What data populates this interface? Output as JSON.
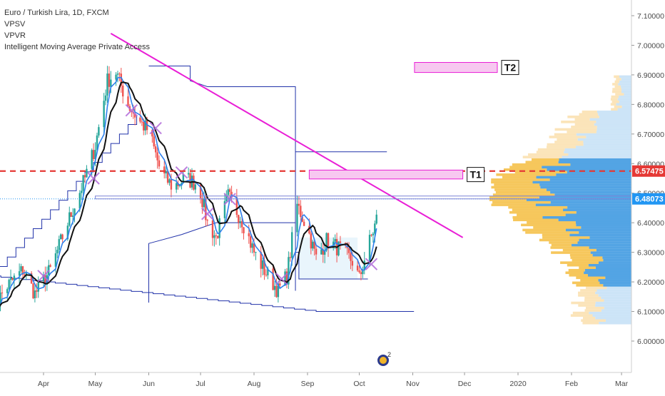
{
  "legend": {
    "symbol": "Euro / Turkish Lira, 1D, FXCM",
    "indicators": [
      "VPSV",
      "VPVR",
      "Intelligent Moving Average Private Access"
    ]
  },
  "colors": {
    "bull": "#26a69a",
    "bear": "#ef5350",
    "trendline": "#e91fd6",
    "support": "#e53935",
    "range_box": "#2233aa",
    "price_tag": "#2196f3",
    "level_tag": "#e53935",
    "ma_black": "#111111",
    "ma_blue": "#2f80ed",
    "marker": "#b26ad9"
  },
  "chart_data": {
    "type": "candlestick",
    "title": "Euro / Turkish Lira, 1D, FXCM",
    "ylim": [
      5.93,
      7.13
    ],
    "y_ticks": [
      "7.10000",
      "7.00000",
      "6.90000",
      "6.80000",
      "6.70000",
      "6.60000",
      "6.50000",
      "6.40000",
      "6.30000",
      "6.20000",
      "6.10000",
      "6.00000"
    ],
    "x_ticks": [
      "Apr",
      "May",
      "Jun",
      "Jul",
      "Aug",
      "Sep",
      "Oct",
      "Nov",
      "Dec",
      "2020",
      "Feb",
      "Mar"
    ],
    "current_price": "6.48073",
    "support_level": "6.57475",
    "trendline": {
      "start": [
        "2019-05-10",
        7.04
      ],
      "end": [
        "2019-11-30",
        6.35
      ]
    },
    "targets": [
      {
        "label": "T1",
        "zone": [
          6.548,
          6.578
        ]
      },
      {
        "label": "T2",
        "zone": [
          6.908,
          6.942
        ]
      }
    ],
    "price_path": [
      [
        "2019-03-01",
        6.09
      ],
      [
        "2019-03-10",
        6.18
      ],
      [
        "2019-03-20",
        6.24
      ],
      [
        "2019-03-27",
        6.16
      ],
      [
        "2019-04-05",
        6.24
      ],
      [
        "2019-04-15",
        6.4
      ],
      [
        "2019-04-25",
        6.55
      ],
      [
        "2019-05-01",
        6.66
      ],
      [
        "2019-05-08",
        6.88
      ],
      [
        "2019-05-13",
        6.91
      ],
      [
        "2019-05-20",
        6.8
      ],
      [
        "2019-05-27",
        6.74
      ],
      [
        "2019-06-01",
        6.71
      ],
      [
        "2019-06-08",
        6.57
      ],
      [
        "2019-06-15",
        6.52
      ],
      [
        "2019-06-22",
        6.55
      ],
      [
        "2019-06-30",
        6.53
      ],
      [
        "2019-07-05",
        6.4
      ],
      [
        "2019-07-10",
        6.35
      ],
      [
        "2019-07-17",
        6.49
      ],
      [
        "2019-07-25",
        6.41
      ],
      [
        "2019-08-01",
        6.3
      ],
      [
        "2019-08-08",
        6.23
      ],
      [
        "2019-08-15",
        6.17
      ],
      [
        "2019-08-20",
        6.22
      ],
      [
        "2019-08-26",
        6.46
      ],
      [
        "2019-09-01",
        6.38
      ],
      [
        "2019-09-06",
        6.28
      ],
      [
        "2019-09-12",
        6.34
      ],
      [
        "2019-09-20",
        6.31
      ],
      [
        "2019-09-27",
        6.27
      ],
      [
        "2019-10-01",
        6.21
      ],
      [
        "2019-10-05",
        6.3
      ],
      [
        "2019-10-10",
        6.39
      ],
      [
        "2019-10-13",
        6.46
      ]
    ]
  },
  "icon": {
    "name": "notification-badge-icon",
    "count": "2"
  }
}
